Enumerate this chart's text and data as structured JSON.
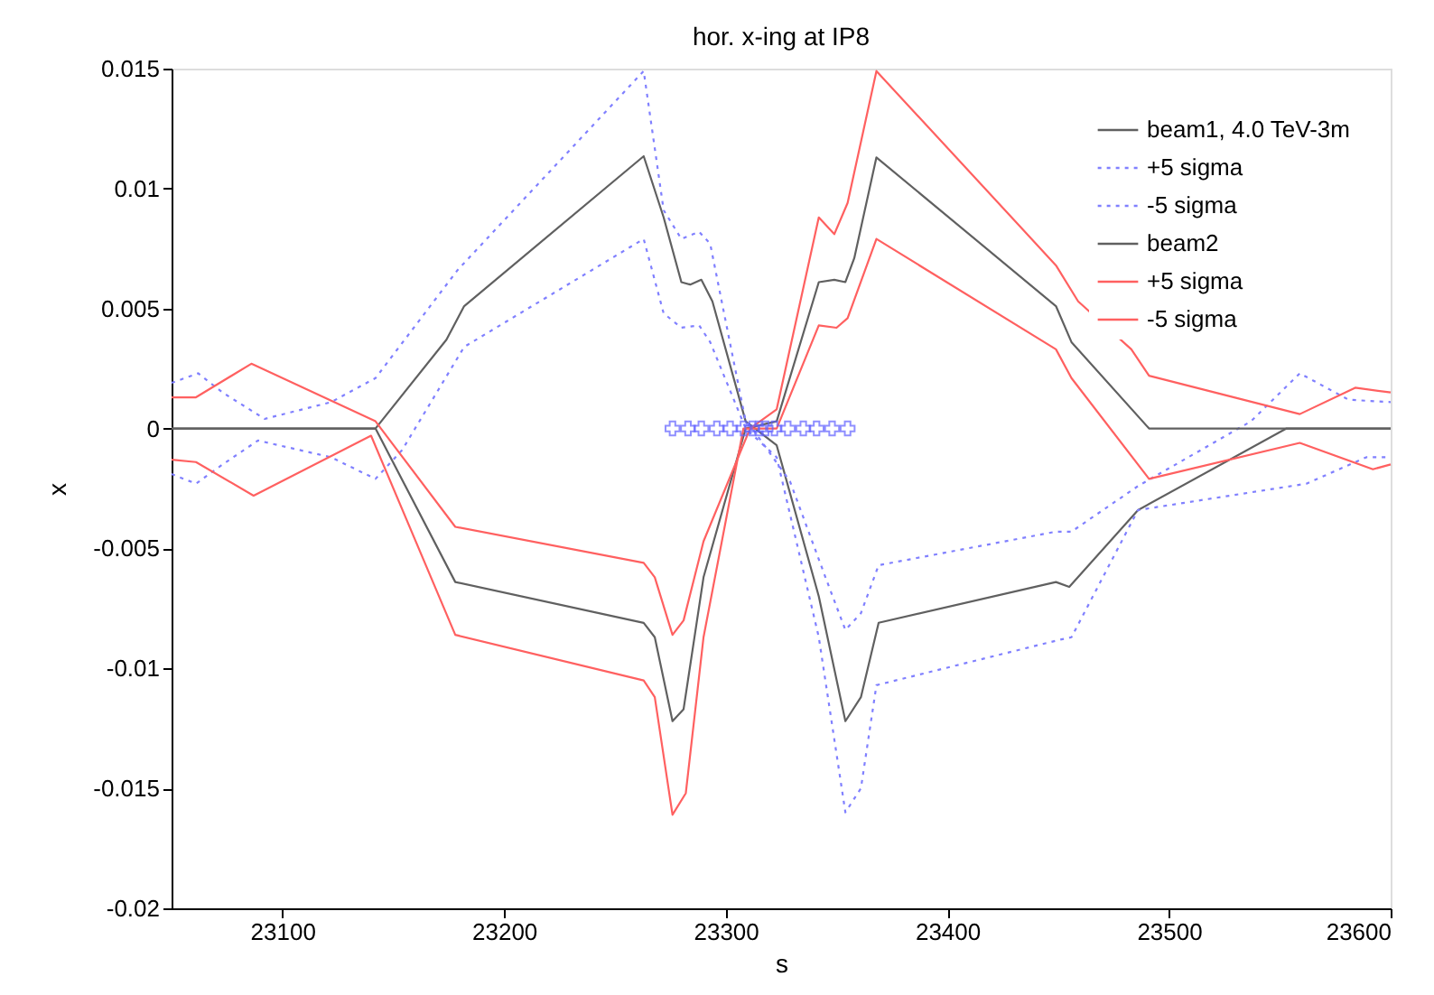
{
  "chart_data": {
    "type": "line",
    "title": "hor. x-ing at IP8",
    "xlabel": "s",
    "ylabel": "x",
    "xlim": [
      23050,
      23600
    ],
    "xticks": [
      23100,
      23200,
      23300,
      23400,
      23500,
      23600
    ],
    "ylim": [
      -0.02,
      0.015
    ],
    "yticks": [
      -0.02,
      -0.015,
      -0.01,
      -0.005,
      0,
      0.005,
      0.01,
      0.015
    ],
    "grid": false,
    "legend": "top right",
    "marker": "none",
    "series": [
      {
        "name": "beam1, 4.0 TeV-3m",
        "color": "#606060",
        "line_style": "solid",
        "x": [
          23050,
          23142,
          23174,
          23182,
          23263,
          23272,
          23280,
          23284,
          23289,
          23294,
          23309,
          23323,
          23342,
          23354,
          23361,
          23369,
          23449,
          23455,
          23486,
          23553,
          23600
        ],
        "values": [
          0,
          0,
          0.0037,
          0.0051,
          0.01135,
          0.0088,
          0.0061,
          0.006,
          0.0062,
          0.0053,
          0.0003,
          -0.0007,
          -0.007,
          -0.0122,
          -0.0112,
          -0.0081,
          -0.0064,
          -0.0066,
          -0.0034,
          0,
          0
        ]
      },
      {
        "name": "+5 sigma",
        "color": "#8080ff",
        "line_style": "dotted",
        "x": [
          23050,
          23062,
          23073,
          23092,
          23122,
          23142,
          23179,
          23263,
          23272,
          23280,
          23288,
          23293,
          23309,
          23312,
          23329,
          23345,
          23354,
          23361,
          23369,
          23449,
          23456,
          23486,
          23537,
          23559,
          23581,
          23600
        ],
        "values": [
          0.0019,
          0.0023,
          0.0015,
          0.0004,
          0.0011,
          0.0021,
          0.0066,
          0.0149,
          0.0091,
          0.0079,
          0.0082,
          0.0077,
          0.0003,
          0,
          -0.0022,
          -0.0062,
          -0.0084,
          -0.0077,
          -0.0057,
          -0.0043,
          -0.0043,
          -0.0024,
          0.0003,
          0.0023,
          0.0012,
          0.0011
        ]
      },
      {
        "name": "-5 sigma",
        "color": "#8080ff",
        "line_style": "dotted",
        "x": [
          23050,
          23061,
          23073,
          23089,
          23122,
          23142,
          23154,
          23182,
          23263,
          23272,
          23280,
          23288,
          23293,
          23309,
          23323,
          23342,
          23354,
          23361,
          23368,
          23451,
          23456,
          23486,
          23562,
          23589,
          23600
        ],
        "values": [
          -0.0019,
          -0.0023,
          -0.0015,
          -0.0005,
          -0.0012,
          -0.0021,
          -0.0009,
          0.0034,
          0.0079,
          0.0048,
          0.0042,
          0.0043,
          0.0036,
          0,
          -0.0012,
          -0.0087,
          -0.016,
          -0.015,
          -0.0107,
          -0.0088,
          -0.0087,
          -0.0034,
          -0.0023,
          -0.0012,
          -0.0012
        ]
      },
      {
        "name": "beam2",
        "color": "#606060",
        "line_style": "solid",
        "x": [
          23050,
          23142,
          23178,
          23263,
          23268,
          23276,
          23281,
          23290,
          23309,
          23323,
          23342,
          23349,
          23354,
          23358,
          23368,
          23449,
          23456,
          23491,
          23600
        ],
        "values": [
          0,
          0,
          -0.0064,
          -0.0081,
          -0.0087,
          -0.0122,
          -0.0117,
          -0.0062,
          0,
          0.0003,
          0.0061,
          0.0062,
          0.0061,
          0.0071,
          0.0113,
          0.0051,
          0.0036,
          0,
          0
        ]
      },
      {
        "name": "+5 sigma",
        "color": "#ff6060",
        "line_style": "solid",
        "x": [
          23050,
          23061,
          23086,
          23142,
          23178,
          23263,
          23268,
          23276,
          23281,
          23290,
          23311,
          23323,
          23342,
          23349,
          23355,
          23368,
          23449,
          23459,
          23483,
          23491,
          23559,
          23584,
          23600
        ],
        "values": [
          0.0013,
          0.0013,
          0.0027,
          0.0003,
          -0.0041,
          -0.0056,
          -0.0062,
          -0.0086,
          -0.008,
          -0.0047,
          0,
          0.0008,
          0.0088,
          0.0081,
          0.0094,
          0.0149,
          0.0068,
          0.0053,
          0.0033,
          0.0022,
          0.0006,
          0.0017,
          0.0015
        ]
      },
      {
        "name": "-5 sigma",
        "color": "#ff6060",
        "line_style": "solid",
        "x": [
          23050,
          23061,
          23087,
          23140,
          23178,
          23263,
          23268,
          23276,
          23282,
          23290,
          23308,
          23323,
          23342,
          23350,
          23355,
          23368,
          23449,
          23456,
          23491,
          23559,
          23592,
          23600
        ],
        "values": [
          -0.0013,
          -0.0014,
          -0.0028,
          -0.0003,
          -0.0086,
          -0.0105,
          -0.0112,
          -0.0161,
          -0.0152,
          -0.0087,
          0,
          0,
          0.0043,
          0.0042,
          0.0046,
          0.0079,
          0.0033,
          0.0021,
          -0.0021,
          -0.0006,
          -0.0017,
          -0.0015
        ]
      },
      {
        "type": "scatter",
        "marker": "cross",
        "color": "#6060ff",
        "x": [
          23276,
          23283,
          23289,
          23296,
          23302,
          23308,
          23312,
          23315,
          23318,
          23322,
          23328,
          23335,
          23341,
          23348,
          23355
        ],
        "values": [
          0,
          0,
          0,
          0,
          0,
          0,
          0,
          0,
          0,
          0,
          0,
          0,
          0,
          0,
          0
        ]
      }
    ]
  }
}
